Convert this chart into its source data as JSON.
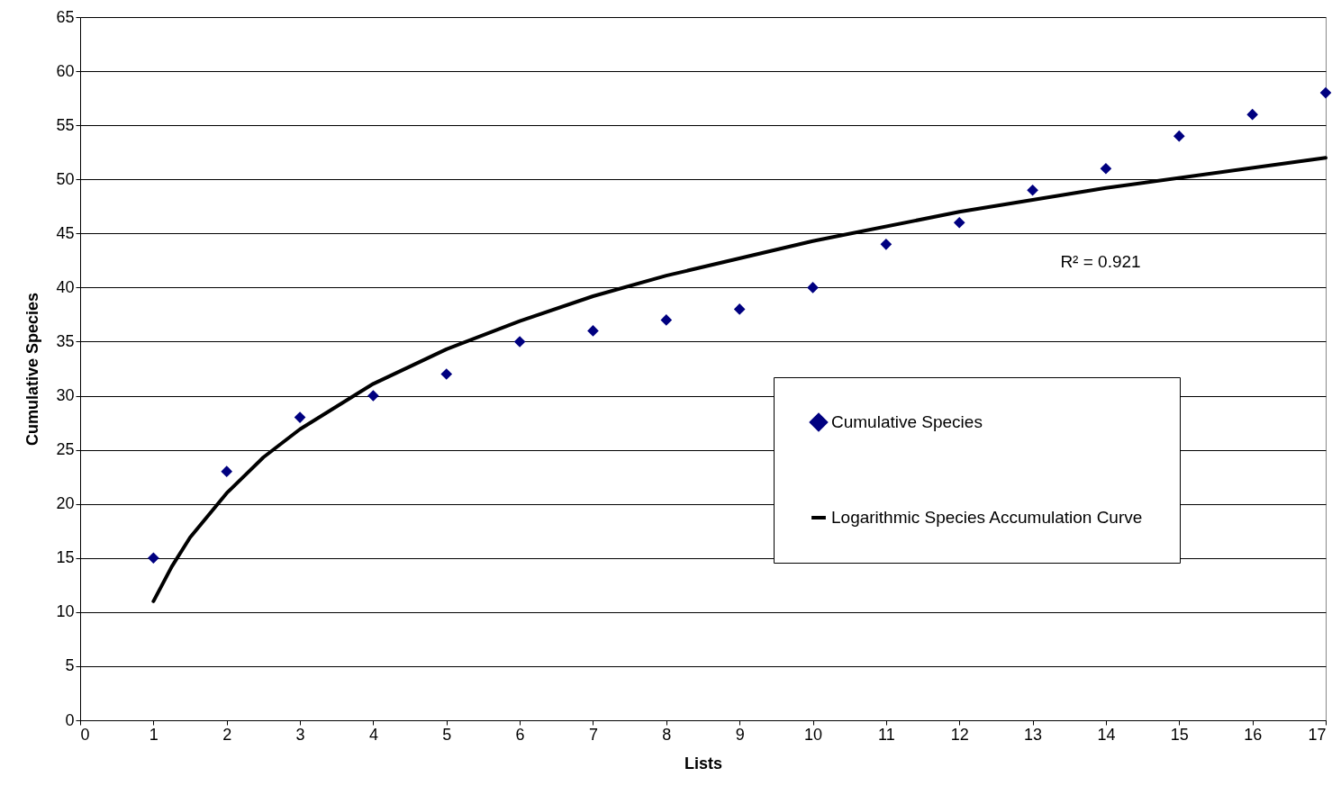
{
  "chart_data": {
    "type": "scatter",
    "xlabel": "Lists",
    "ylabel": "Cumulative Species",
    "x": [
      1,
      2,
      3,
      4,
      5,
      6,
      7,
      8,
      9,
      10,
      11,
      12,
      13,
      14,
      15,
      16,
      17
    ],
    "series": [
      {
        "name": "Cumulative Species",
        "color": "#000080",
        "marker": "diamond",
        "values": [
          15,
          23,
          28,
          30,
          32,
          35,
          36,
          37,
          38,
          40,
          44,
          46,
          49,
          51,
          54,
          56,
          58
        ]
      },
      {
        "name": "Logarithmic Species Accumulation Curve",
        "type": "line",
        "color": "#000000",
        "line_style": "solid",
        "x": [
          1,
          1.25,
          1.5,
          2,
          2.5,
          3,
          4,
          5,
          6,
          7,
          8,
          10,
          12,
          14,
          17
        ],
        "values": [
          11,
          14.2,
          16.9,
          21,
          24.3,
          26.9,
          31.1,
          34.3,
          36.9,
          39.2,
          41.1,
          44.3,
          47,
          49.2,
          52
        ]
      }
    ],
    "annotations": [
      "R² = 0.921"
    ],
    "xlim": [
      0,
      17
    ],
    "xticks": [
      0,
      1,
      2,
      3,
      4,
      5,
      6,
      7,
      8,
      9,
      10,
      11,
      12,
      13,
      14,
      15,
      16,
      17
    ],
    "ylim": [
      0,
      65
    ],
    "yticks": [
      0,
      5,
      10,
      15,
      20,
      25,
      30,
      35,
      40,
      45,
      50,
      55,
      60,
      65
    ],
    "grid": "y",
    "legend": "right"
  }
}
